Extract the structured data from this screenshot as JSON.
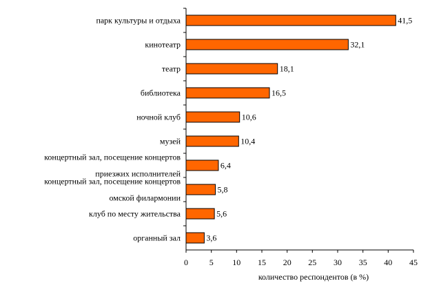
{
  "chart_data": {
    "type": "bar",
    "orientation": "horizontal",
    "categories": [
      [
        "парк культуры и отдыха"
      ],
      [
        "кинотеатр"
      ],
      [
        "театр"
      ],
      [
        "библиотека"
      ],
      [
        "ночной клуб"
      ],
      [
        "музей"
      ],
      [
        "концертный зал, посещение концертов",
        "приезжих исполнителей"
      ],
      [
        "концертный зал, посещение концертов",
        "омской филармонии"
      ],
      [
        "клуб по месту жительства"
      ],
      [
        "органный зал"
      ]
    ],
    "values": [
      41.5,
      32.1,
      18.1,
      16.5,
      10.6,
      10.4,
      6.4,
      5.8,
      5.6,
      3.6
    ],
    "value_labels": [
      "41,5",
      "32,1",
      "18,1",
      "16,5",
      "10,6",
      "10,4",
      "6,4",
      "5,8",
      "5,6",
      "3,6"
    ],
    "x_ticks": [
      "0",
      "5",
      "10",
      "15",
      "20",
      "25",
      "30",
      "35",
      "40",
      "45"
    ],
    "xlim": [
      0,
      45
    ],
    "xlabel": "количество респондентов (в %)",
    "bar_color": "#ff6600",
    "grid": false,
    "legend": "none"
  }
}
